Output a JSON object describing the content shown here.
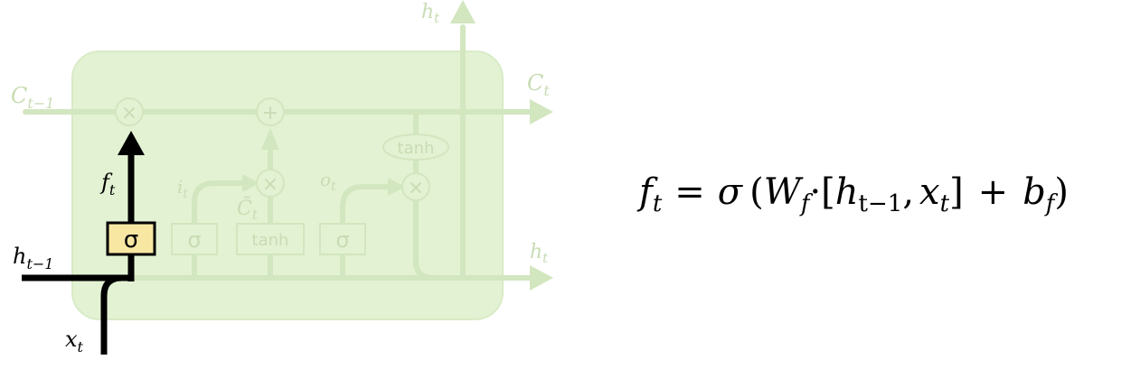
{
  "cell": {
    "labels": {
      "c_prev": "C",
      "c_prev_sub": "t−1",
      "c_next": "C",
      "c_next_sub": "t",
      "h_top": "h",
      "h_top_sub": "t",
      "h_right": "h",
      "h_right_sub": "t",
      "h_prev": "h",
      "h_prev_sub": "t−1",
      "x_in": "x",
      "x_in_sub": "t",
      "f_gate": "f",
      "f_gate_sub": "t",
      "i_gate": "i",
      "i_gate_sub": "t",
      "o_gate": "o",
      "o_gate_sub": "t",
      "c_tilde": "C̃",
      "c_tilde_sub": "t"
    },
    "boxes": {
      "forget_sigma": "σ",
      "input_sigma": "σ",
      "candidate_tanh": "tanh",
      "output_sigma": "σ"
    },
    "pointwise": {
      "mult_forget": "×",
      "add": "+",
      "mult_input": "×",
      "mult_output": "×",
      "tanh_oval": "tanh"
    },
    "colors": {
      "cell_fill": "#e3f2d3",
      "faded_line": "#d2e6bf",
      "faded_text": "#c8dcb4",
      "highlight": "#000000",
      "sigma_box_fill": "#f7e7a3"
    }
  },
  "equation": {
    "lhs": "f",
    "lhs_sub": "t",
    "eq": "=",
    "sigma": "σ",
    "lparen": "(",
    "w": "W",
    "w_sub": "f",
    "dot": "·",
    "lbrack": "[",
    "h": "h",
    "h_sub": "t−1",
    "comma": ",",
    "x": "x",
    "x_sub": "t",
    "rbrack": "]",
    "plus": "+",
    "b": "b",
    "b_sub": "f",
    "rparen": ")"
  }
}
